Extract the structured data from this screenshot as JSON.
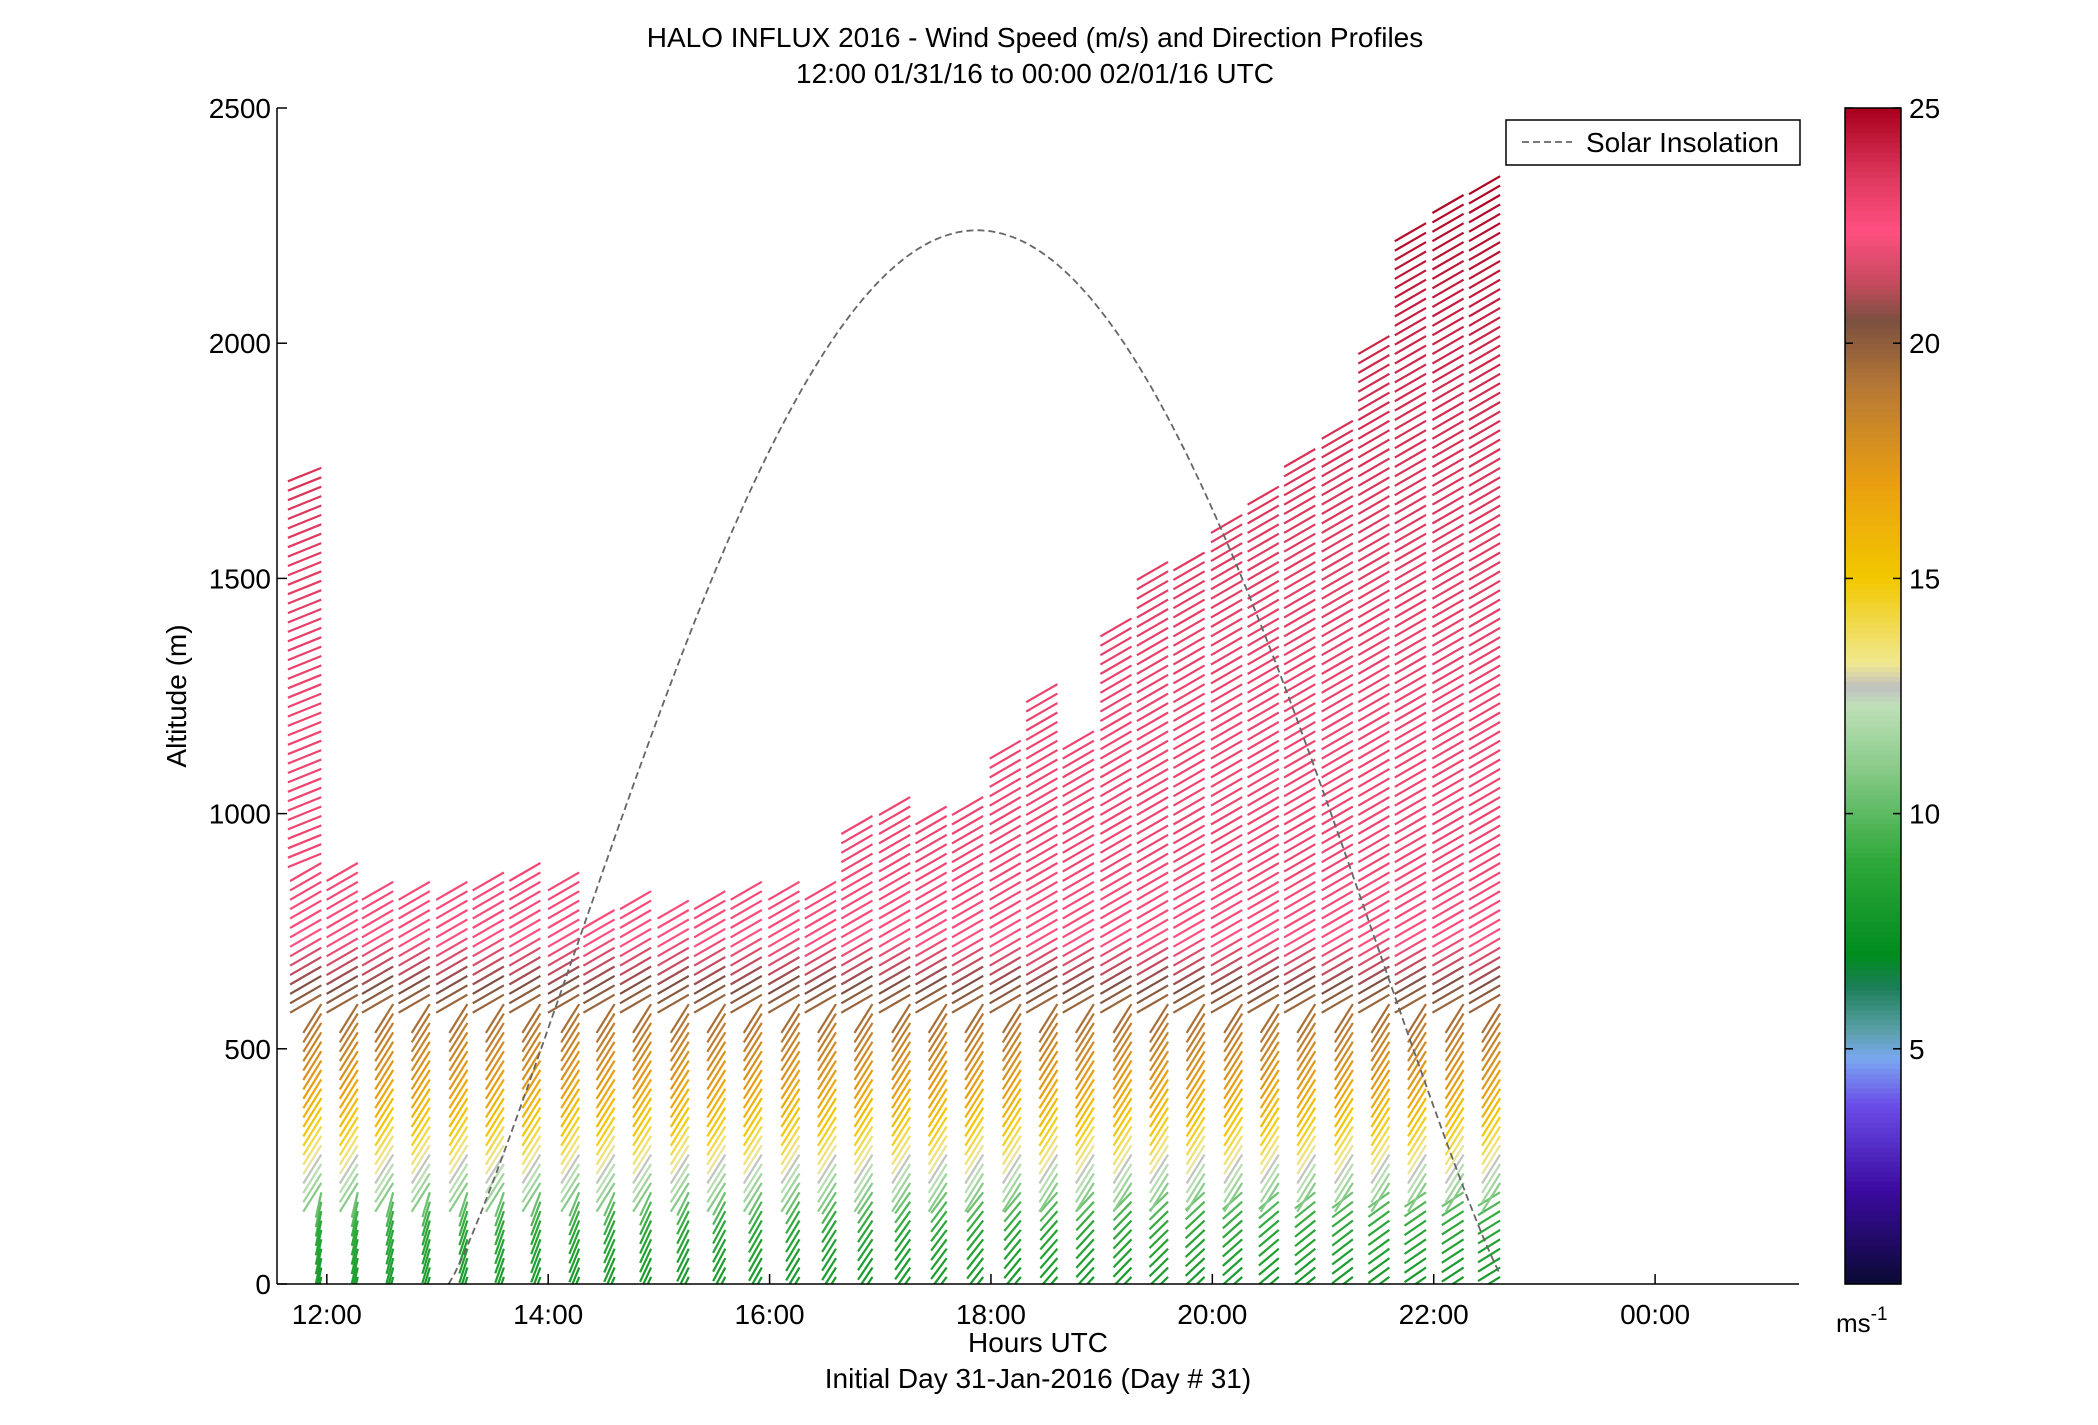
{
  "title_line1": "HALO INFLUX 2016 - Wind Speed (m/s) and Direction Profiles",
  "title_line2": "12:00 01/31/16 to 00:00 02/01/16  UTC",
  "xlabel": "Hours UTC",
  "xlabel2": "Initial Day 31-Jan-2016 (Day # 31)",
  "ylabel": "Altitude (m)",
  "legend_label": "Solar Insolation",
  "colorbar_unit_base": "ms",
  "colorbar_unit_exp": "-1",
  "chart_data": {
    "type": "wind-barb-profile",
    "x_axis": {
      "range_hours": [
        11.55,
        25.3
      ],
      "ticks": [
        12,
        14,
        16,
        18,
        20,
        22,
        24
      ],
      "tick_labels": [
        "12:00",
        "14:00",
        "16:00",
        "18:00",
        "20:00",
        "22:00",
        "00:00"
      ]
    },
    "y_axis": {
      "range_m": [
        0,
        2500
      ],
      "ticks": [
        0,
        500,
        1000,
        1500,
        2000,
        2500
      ],
      "tick_labels": [
        "0",
        "500",
        "1000",
        "1500",
        "2000",
        "2500"
      ]
    },
    "colorbar": {
      "range": [
        0,
        25
      ],
      "ticks": [
        5,
        10,
        15,
        20,
        25
      ],
      "tick_labels": [
        "5",
        "10",
        "15",
        "20",
        "25"
      ]
    },
    "profile_times_hours": [
      11.95,
      12.28,
      12.6,
      12.93,
      13.27,
      13.6,
      13.93,
      14.28,
      14.6,
      14.93,
      15.27,
      15.6,
      15.93,
      16.27,
      16.6,
      16.93,
      17.27,
      17.6,
      17.93,
      18.27,
      18.6,
      18.93,
      19.27,
      19.6,
      19.93,
      20.27,
      20.6,
      20.93,
      21.27,
      21.6,
      21.93,
      22.27,
      22.6
    ],
    "profile_top_altitudes_m": [
      1745,
      905,
      865,
      865,
      870,
      880,
      905,
      875,
      800,
      835,
      830,
      845,
      870,
      860,
      860,
      1005,
      1045,
      1015,
      1045,
      1170,
      1290,
      1180,
      1430,
      1540,
      1560,
      1640,
      1700,
      1780,
      1850,
      2020,
      2265,
      2320,
      2370
    ],
    "wind_speed_by_altitude_m_s": [
      {
        "alt": 25,
        "speed": 8
      },
      {
        "alt": 150,
        "speed": 9
      },
      {
        "alt": 250,
        "speed": 12
      },
      {
        "alt": 330,
        "speed": 14
      },
      {
        "alt": 450,
        "speed": 17
      },
      {
        "alt": 600,
        "speed": 19.5
      },
      {
        "alt": 760,
        "speed": 22.5
      },
      {
        "alt": 950,
        "speed": 23
      },
      {
        "alt": 1200,
        "speed": 23
      },
      {
        "alt": 1600,
        "speed": 23.5
      },
      {
        "alt": 2000,
        "speed": 24
      },
      {
        "alt": 2400,
        "speed": 25
      }
    ],
    "solar_insolation_curve": {
      "start_hour": 13.1,
      "peak_hour": 17.9,
      "peak_altitude_m": 2240,
      "end_hour": 22.65
    }
  }
}
